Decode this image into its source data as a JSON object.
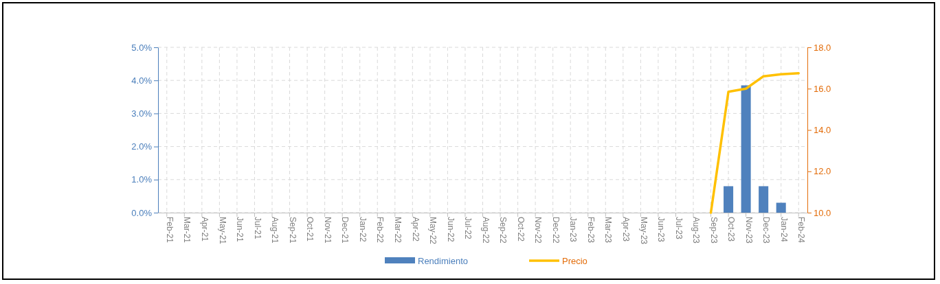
{
  "chart_data": {
    "type": "bar",
    "categories": [
      "Feb-21",
      "Mar-21",
      "Apr-21",
      "May-21",
      "Jun-21",
      "Jul-21",
      "Aug-21",
      "Sep-21",
      "Oct-21",
      "Nov-21",
      "Dec-21",
      "Jan-22",
      "Feb-22",
      "Mar-22",
      "Apr-22",
      "May-22",
      "Jun-22",
      "Jul-22",
      "Aug-22",
      "Sep-22",
      "Oct-22",
      "Nov-22",
      "Dec-22",
      "Jan-23",
      "Feb-23",
      "Mar-23",
      "Apr-23",
      "May-23",
      "Jun-23",
      "Jul-23",
      "Aug-23",
      "Sep-23",
      "Oct-23",
      "Nov-23",
      "Dec-23",
      "Jan-24",
      "Feb-24"
    ],
    "series": [
      {
        "name": "Rendimiento",
        "color": "#4f81bd",
        "values": [
          null,
          null,
          null,
          null,
          null,
          null,
          null,
          null,
          null,
          null,
          null,
          null,
          null,
          null,
          null,
          null,
          null,
          null,
          null,
          null,
          null,
          null,
          null,
          null,
          null,
          null,
          null,
          null,
          null,
          null,
          null,
          null,
          0.8,
          3.85,
          0.8,
          0.3,
          null
        ]
      },
      {
        "name": "Precio",
        "type": "line",
        "axis": "y2",
        "color": "#ffc000",
        "values": [
          null,
          null,
          null,
          null,
          null,
          null,
          null,
          null,
          null,
          null,
          null,
          null,
          null,
          null,
          null,
          null,
          null,
          null,
          null,
          null,
          null,
          null,
          null,
          null,
          null,
          null,
          null,
          null,
          null,
          null,
          null,
          10.0,
          15.85,
          16.0,
          16.6,
          16.7,
          16.75
        ]
      }
    ],
    "ylim": [
      0,
      5
    ],
    "yticks": [
      {
        "value": 0,
        "label": "0.0%"
      },
      {
        "value": 1,
        "label": "1.0%"
      },
      {
        "value": 2,
        "label": "2.0%"
      },
      {
        "value": 3,
        "label": "3.0%"
      },
      {
        "value": 4,
        "label": "4.0%"
      },
      {
        "value": 5,
        "label": "5.0%"
      }
    ],
    "y2lim": [
      10,
      18
    ],
    "y2ticks": [
      {
        "value": 10,
        "label": "10.0"
      },
      {
        "value": 12,
        "label": "12.0"
      },
      {
        "value": 14,
        "label": "14.0"
      },
      {
        "value": 16,
        "label": "16.0"
      },
      {
        "value": 18,
        "label": "18.0"
      }
    ],
    "grid": true,
    "legend": "bottom"
  }
}
